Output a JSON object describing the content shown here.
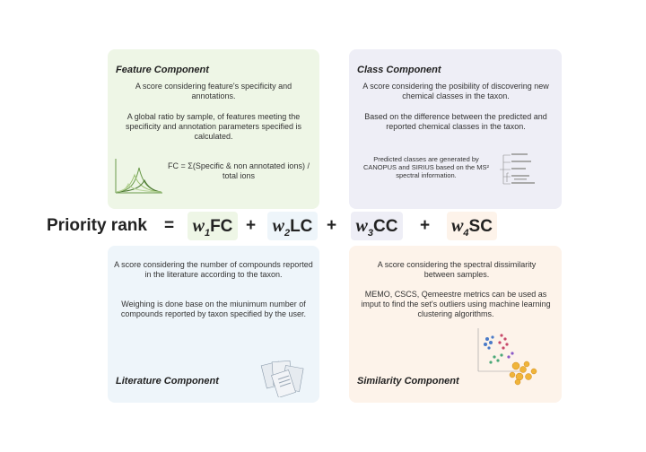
{
  "feature": {
    "title": "Feature Component",
    "text1": "A score considering feature's specificity and annotations.",
    "text2": "A global ratio by sample, of features meeting the specificity and annotation parameters specified is calculated.",
    "formula": "FC = Σ(Specific & non annotated ions)  / total ions"
  },
  "class": {
    "title": "Class Component",
    "text1": "A score considering the posibility of discovering new chemical classes  in the taxon.",
    "text2": "Based on the difference  between the predicted and reported chemical classes in the taxon.",
    "text3": "Predicted classes are generated by CANOPUS and SIRIUS based on the MS² spectral information."
  },
  "literature": {
    "title": "Literature Component",
    "text1": "A score considering the number of compounds reported in the literature according to the taxon.",
    "text2": "Weighing is done base on the miunimum number of compounds reported by taxon specified by the user."
  },
  "similarity": {
    "title": "Similarity Component",
    "text1": "A score considering the spectral dissimilarity between samples.",
    "text2": "MEMO, CSCS, Qemeestre metrics can be used as imput to find the set's outliers using machine learning clustering algorithms."
  },
  "equation": {
    "label": "Priority rank",
    "equals": "=",
    "plus": "+",
    "terms": [
      {
        "weight": "w",
        "sub": "1",
        "code": "FC"
      },
      {
        "weight": "w",
        "sub": "2",
        "code": "LC"
      },
      {
        "weight": "w",
        "sub": "3",
        "code": "CC"
      },
      {
        "weight": "w",
        "sub": "4",
        "code": "SC"
      }
    ]
  },
  "colors": {
    "feature_bg": "#eef6e6",
    "class_bg": "#eeeef6",
    "literature_bg": "#eef5fa",
    "similarity_bg": "#fdf3ea"
  }
}
